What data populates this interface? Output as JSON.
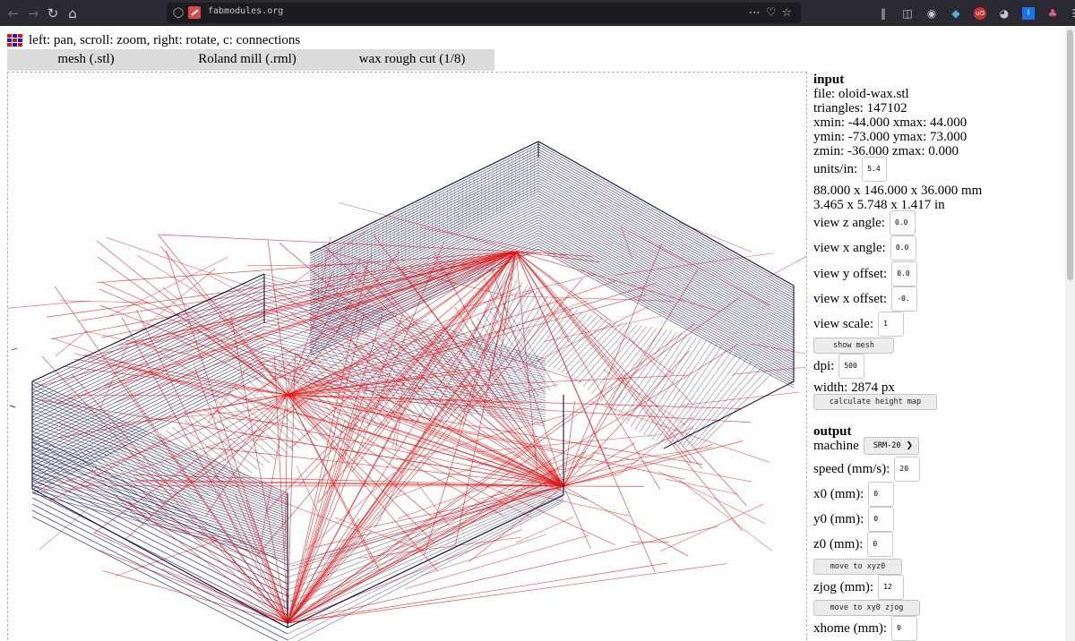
{
  "browser": {
    "url": "fabmodules.org",
    "icons": [
      "back-arrow-icon",
      "forward-arrow-icon",
      "reload-icon",
      "home-icon",
      "shield-icon",
      "insecure-lock-icon",
      "more-dots-icon",
      "pocket-icon",
      "bookmark-star-icon",
      "library-icon",
      "sidebar-icon",
      "account-icon",
      "extension-icon",
      "ublock-icon",
      "extension-icon",
      "extension-icon",
      "extension-icon",
      "menu-icon"
    ]
  },
  "header": {
    "help": "left: pan, scroll: zoom, right: rotate, c: connections"
  },
  "tabs": [
    {
      "label": "mesh (.stl)"
    },
    {
      "label": "Roland mill (.rml)"
    },
    {
      "label": "wax rough cut (1/8)"
    }
  ],
  "input": {
    "title": "input",
    "file": "file: oloid-wax.stl",
    "triangles": "triangles: 147102",
    "x_range": "xmin: -44.000 xmax: 44.000",
    "y_range": "ymin: -73.000 ymax: 73.000",
    "z_range": "zmin: -36.000 zmax: 0.000",
    "units_label": "units/in:",
    "units_value": "5.4",
    "size_mm": "88.000 x 146.000 x 36.000 mm",
    "size_in": "3.465 x 5.748 x 1.417 in",
    "view_z_label": "view z angle:",
    "view_z_value": "0.0",
    "view_x_label": "view x angle:",
    "view_x_value": "0.0",
    "view_y_offset_label": "view y offset:",
    "view_y_offset_value": "0.0",
    "view_x_offset_label": "view x offset:",
    "view_x_offset_value": "-0.",
    "view_scale_label": "view scale:",
    "view_scale_value": "1",
    "show_mesh_button": "show mesh",
    "dpi_label": "dpi:",
    "dpi_value": "500",
    "width": "width: 2874 px",
    "calc_button": "calculate height map"
  },
  "output": {
    "title": "output",
    "machine_label": "machine",
    "machine_value": "SRM-20",
    "speed_label": "speed (mm/s):",
    "speed_value": "20",
    "x0_label": "x0 (mm):",
    "x0_value": "0",
    "y0_label": "y0 (mm):",
    "y0_value": "0",
    "z0_label": "z0 (mm):",
    "z0_value": "0",
    "move_xyz0_button": "move to xyz0",
    "zjog_label": "zjog (mm):",
    "zjog_value": "12",
    "move_xy0zjog_button": "move to xy0 zjog",
    "xhome_label": "xhome (mm):",
    "xhome_value": "0"
  },
  "colors": {
    "toolpath": "#1a1f5c",
    "rapid_moves": "#e01818",
    "tab_bg": "#dcdcdc",
    "chrome_bg": "#2b2a33"
  }
}
